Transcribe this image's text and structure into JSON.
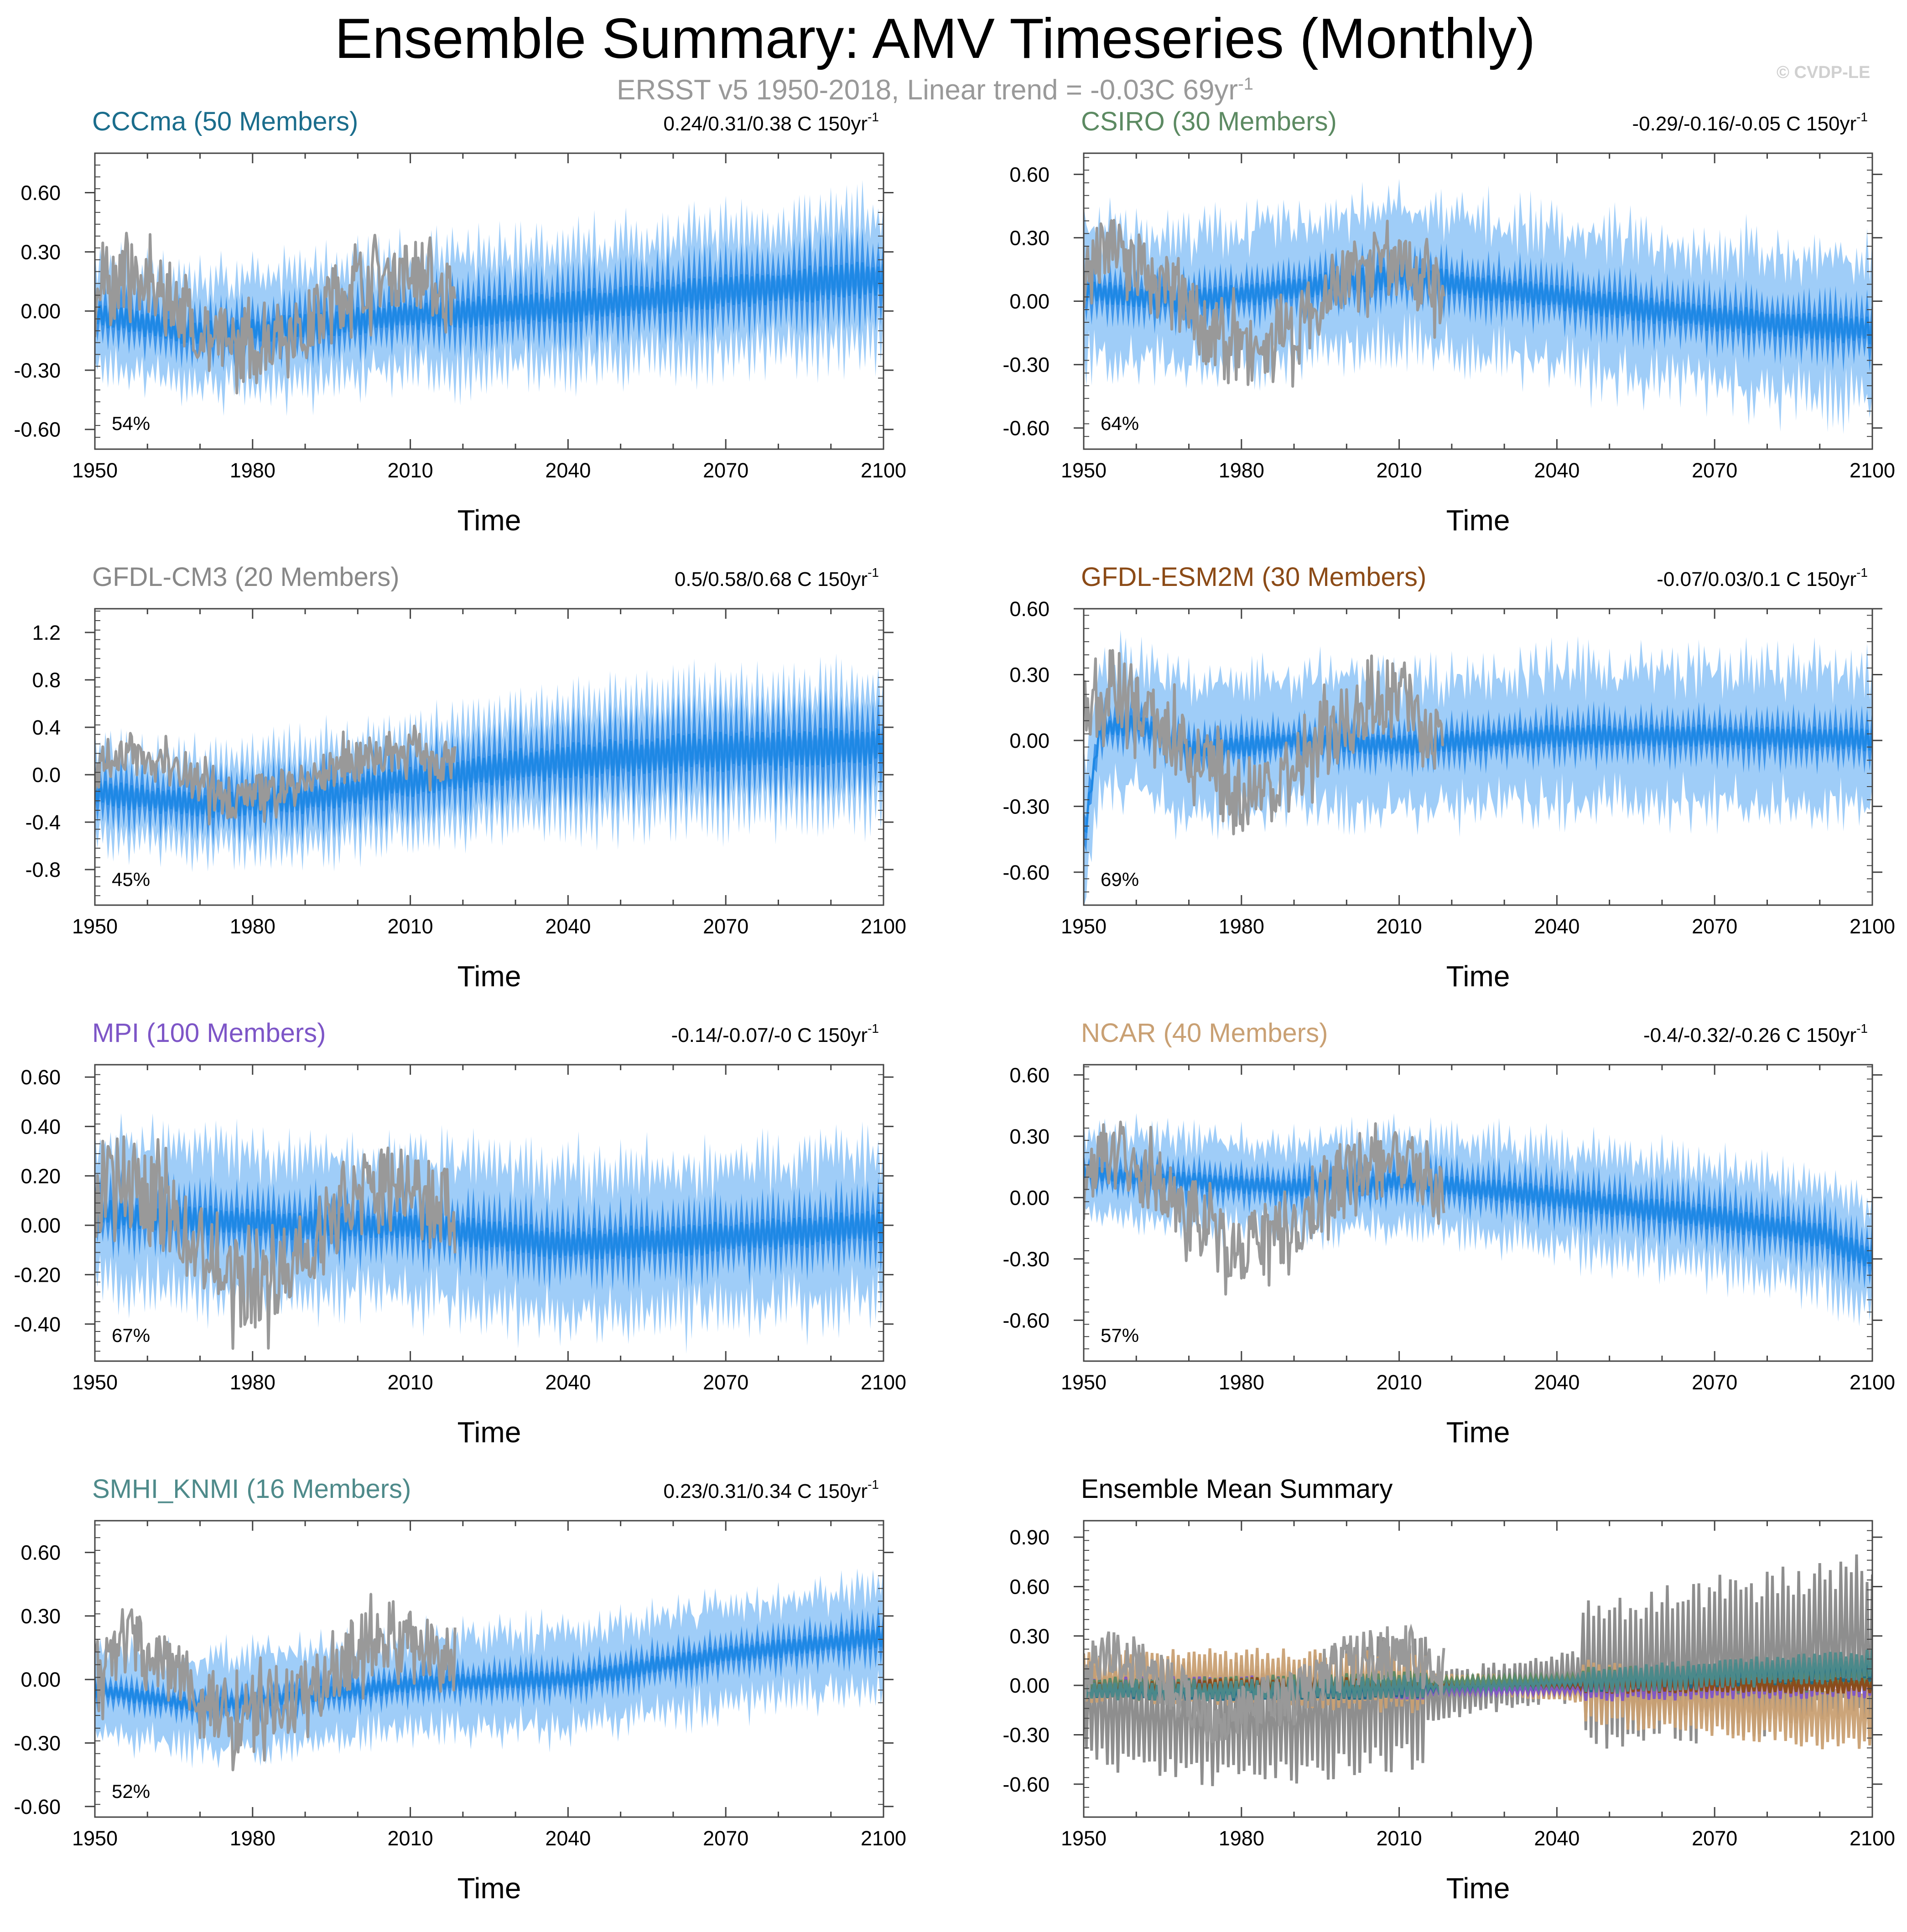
{
  "title": "Ensemble Summary: AMV Timeseries (Monthly)",
  "subtitle": "ERSST v5 1950-2018, Linear trend = -0.03C 69yr",
  "subtitle_sup": "-1",
  "watermark": "© CVDP-LE",
  "colors": {
    "observed": "#999999",
    "ensemble_mean": "#1e88e5",
    "ensemble_inner": "#3e95ea",
    "ensemble_outer": "#9fcdf8",
    "axis": "#444444"
  },
  "chart_data": [
    {
      "type": "line",
      "title": "CCCma (50 Members)",
      "title_color": "#1a6d8c",
      "trend_text": "0.24/0.31/0.38 C 150yr",
      "trend_sup": "-1",
      "percent_label": "54%",
      "xlabel": "Time",
      "xlim": [
        1950,
        2100
      ],
      "xticks": [
        "1950",
        "1980",
        "2010",
        "2040",
        "2070",
        "2100"
      ],
      "ylim": [
        -0.7,
        0.8
      ],
      "yticks": [
        "-0.60",
        "-0.30",
        "0.00",
        "0.30",
        "0.60"
      ],
      "ytick_values": [
        -0.6,
        -0.3,
        0.0,
        0.3,
        0.6
      ],
      "series": [
        {
          "name": "ensemble mean",
          "x": [
            1950,
            1970,
            1990,
            2010,
            2040,
            2070,
            2100
          ],
          "y": [
            -0.02,
            -0.12,
            -0.08,
            -0.02,
            0.02,
            0.1,
            0.17
          ],
          "amplitude_start": 0.18,
          "amplitude_end": 0.28,
          "spread": 0.14
        },
        {
          "name": "observed",
          "x": [
            1950,
            1955,
            1960,
            1965,
            1970,
            1975,
            1980,
            1985,
            1990,
            1995,
            2000,
            2005,
            2010,
            2015,
            2018
          ],
          "y": [
            0.05,
            0.2,
            0.12,
            0.05,
            -0.1,
            -0.2,
            -0.18,
            -0.1,
            -0.08,
            0.05,
            0.15,
            0.18,
            0.22,
            0.12,
            0.08
          ]
        }
      ]
    },
    {
      "type": "line",
      "title": "CSIRO (30 Members)",
      "title_color": "#5c8a62",
      "trend_text": "-0.29/-0.16/-0.05 C 150yr",
      "trend_sup": "-1",
      "percent_label": "64%",
      "xlabel": "Time",
      "xlim": [
        1950,
        2100
      ],
      "xticks": [
        "1950",
        "1980",
        "2010",
        "2040",
        "2070",
        "2100"
      ],
      "ylim": [
        -0.7,
        0.7
      ],
      "yticks": [
        "-0.60",
        "-0.30",
        "0.00",
        "0.30",
        "0.60"
      ],
      "ytick_values": [
        -0.6,
        -0.3,
        0.0,
        0.3,
        0.6
      ],
      "series": [
        {
          "name": "ensemble mean",
          "x": [
            1950,
            1970,
            1990,
            2010,
            2040,
            2070,
            2100
          ],
          "y": [
            0.05,
            0.0,
            0.06,
            0.12,
            0.02,
            -0.08,
            -0.14
          ],
          "amplitude_start": 0.16,
          "amplitude_end": 0.2,
          "spread": 0.2
        },
        {
          "name": "observed",
          "x": [
            1950,
            1955,
            1960,
            1965,
            1970,
            1975,
            1980,
            1985,
            1990,
            1995,
            2000,
            2005,
            2010,
            2015,
            2018
          ],
          "y": [
            0.12,
            0.25,
            0.15,
            0.05,
            -0.05,
            -0.18,
            -0.25,
            -0.2,
            -0.15,
            0.0,
            0.1,
            0.15,
            0.2,
            0.1,
            0.05
          ]
        }
      ]
    },
    {
      "type": "line",
      "title": "GFDL-CM3 (20 Members)",
      "title_color": "#888888",
      "trend_text": "0.5/0.58/0.68 C 150yr",
      "trend_sup": "-1",
      "percent_label": "45%",
      "xlabel": "Time",
      "xlim": [
        1950,
        2100
      ],
      "xticks": [
        "1950",
        "1980",
        "2010",
        "2040",
        "2070",
        "2100"
      ],
      "ylim": [
        -1.1,
        1.4
      ],
      "yticks": [
        "-0.8",
        "-0.4",
        "0.0",
        "0.4",
        "0.8",
        "1.2"
      ],
      "ytick_values": [
        -0.8,
        -0.4,
        0.0,
        0.4,
        0.8,
        1.2
      ],
      "series": [
        {
          "name": "ensemble mean",
          "x": [
            1950,
            1970,
            1990,
            2010,
            2040,
            2070,
            2100
          ],
          "y": [
            -0.15,
            -0.25,
            -0.2,
            -0.05,
            0.12,
            0.2,
            0.25
          ],
          "amplitude_start": 0.32,
          "amplitude_end": 0.55,
          "spread": 0.15
        },
        {
          "name": "observed",
          "x": [
            1950,
            1955,
            1960,
            1965,
            1970,
            1975,
            1980,
            1985,
            1990,
            1995,
            2000,
            2005,
            2010,
            2015,
            2018
          ],
          "y": [
            0.05,
            0.2,
            0.12,
            0.05,
            -0.1,
            -0.2,
            -0.18,
            -0.1,
            -0.08,
            0.05,
            0.15,
            0.18,
            0.22,
            0.12,
            0.08
          ]
        }
      ]
    },
    {
      "type": "line",
      "title": "GFDL-ESM2M (30 Members)",
      "title_color": "#8b4a16",
      "trend_text": "-0.07/0.03/0.1 C 150yr",
      "trend_sup": "-1",
      "percent_label": "69%",
      "xlabel": "Time",
      "xlim": [
        1950,
        2100
      ],
      "xticks": [
        "1950",
        "1980",
        "2010",
        "2040",
        "2070",
        "2100"
      ],
      "ylim": [
        -0.75,
        0.6
      ],
      "yticks": [
        "-0.60",
        "-0.30",
        "0.00",
        "0.30",
        "0.60"
      ],
      "ytick_values": [
        -0.6,
        -0.3,
        0.0,
        0.3,
        0.6
      ],
      "series": [
        {
          "name": "ensemble mean",
          "x": [
            1950,
            1953,
            1960,
            1970,
            1990,
            2010,
            2040,
            2070,
            2100
          ],
          "y": [
            -0.45,
            0.05,
            0.08,
            -0.05,
            0.0,
            -0.02,
            0.02,
            0.02,
            0.0
          ],
          "amplitude_start": 0.14,
          "amplitude_end": 0.16,
          "spread": 0.2
        },
        {
          "name": "observed",
          "x": [
            1950,
            1955,
            1960,
            1965,
            1970,
            1975,
            1980,
            1985,
            1990,
            1995,
            2000,
            2005,
            2010,
            2015,
            2018
          ],
          "y": [
            0.12,
            0.25,
            0.15,
            0.05,
            -0.05,
            -0.18,
            -0.25,
            -0.2,
            -0.15,
            0.0,
            0.1,
            0.15,
            0.2,
            0.1,
            0.05
          ]
        }
      ]
    },
    {
      "type": "line",
      "title": "MPI (100 Members)",
      "title_color": "#7d55c7",
      "trend_text": "-0.14/-0.07/-0 C 150yr",
      "trend_sup": "-1",
      "percent_label": "67%",
      "xlabel": "Time",
      "xlim": [
        1950,
        2100
      ],
      "xticks": [
        "1950",
        "1980",
        "2010",
        "2040",
        "2070",
        "2100"
      ],
      "ylim": [
        -0.55,
        0.65
      ],
      "yticks": [
        "-0.40",
        "-0.20",
        "0.00",
        "0.20",
        "0.40",
        "0.60"
      ],
      "ytick_values": [
        -0.4,
        -0.2,
        0.0,
        0.2,
        0.4,
        0.6
      ],
      "series": [
        {
          "name": "ensemble mean",
          "x": [
            1950,
            1970,
            1990,
            2010,
            2040,
            2070,
            2100
          ],
          "y": [
            0.05,
            0.02,
            0.0,
            0.0,
            -0.08,
            -0.05,
            0.0
          ],
          "amplitude_start": 0.18,
          "amplitude_end": 0.2,
          "spread": 0.16
        },
        {
          "name": "observed",
          "x": [
            1950,
            1955,
            1960,
            1965,
            1970,
            1975,
            1980,
            1985,
            1990,
            1995,
            2000,
            2005,
            2010,
            2015,
            2018
          ],
          "y": [
            0.1,
            0.22,
            0.12,
            0.02,
            -0.1,
            -0.22,
            -0.25,
            -0.18,
            -0.12,
            0.02,
            0.12,
            0.16,
            0.2,
            0.08,
            0.04
          ]
        }
      ]
    },
    {
      "type": "line",
      "title": "NCAR (40 Members)",
      "title_color": "#c9a073",
      "trend_text": "-0.4/-0.32/-0.26 C 150yr",
      "trend_sup": "-1",
      "percent_label": "57%",
      "xlabel": "Time",
      "xlim": [
        1950,
        2100
      ],
      "xticks": [
        "1950",
        "1980",
        "2010",
        "2040",
        "2070",
        "2100"
      ],
      "ylim": [
        -0.8,
        0.65
      ],
      "yticks": [
        "-0.60",
        "-0.30",
        "0.00",
        "0.30",
        "0.60"
      ],
      "ytick_values": [
        -0.6,
        -0.3,
        0.0,
        0.3,
        0.6
      ],
      "series": [
        {
          "name": "ensemble mean",
          "x": [
            1950,
            1970,
            1990,
            2010,
            2040,
            2070,
            2090,
            2100
          ],
          "y": [
            0.12,
            0.08,
            0.05,
            0.08,
            0.0,
            -0.1,
            -0.18,
            -0.3
          ],
          "amplitude_start": 0.12,
          "amplitude_end": 0.2,
          "spread": 0.12
        },
        {
          "name": "observed",
          "x": [
            1950,
            1955,
            1960,
            1965,
            1970,
            1975,
            1980,
            1985,
            1990,
            1995,
            2000,
            2005,
            2010,
            2015,
            2018
          ],
          "y": [
            0.12,
            0.25,
            0.15,
            0.05,
            -0.05,
            -0.18,
            -0.25,
            -0.2,
            -0.15,
            0.0,
            0.1,
            0.15,
            0.2,
            0.1,
            0.05
          ]
        }
      ]
    },
    {
      "type": "line",
      "title": "SMHI_KNMI (16 Members)",
      "title_color": "#4e8a8a",
      "trend_text": "0.23/0.31/0.34 C 150yr",
      "trend_sup": "-1",
      "percent_label": "52%",
      "xlabel": "Time",
      "xlim": [
        1950,
        2100
      ],
      "xticks": [
        "1950",
        "1980",
        "2010",
        "2040",
        "2070",
        "2100"
      ],
      "ylim": [
        -0.65,
        0.75
      ],
      "yticks": [
        "-0.60",
        "-0.30",
        "0.00",
        "0.30",
        "0.60"
      ],
      "ytick_values": [
        -0.6,
        -0.3,
        0.0,
        0.3,
        0.6
      ],
      "series": [
        {
          "name": "ensemble mean",
          "x": [
            1950,
            1970,
            1990,
            2010,
            2040,
            2070,
            2100
          ],
          "y": [
            -0.05,
            -0.12,
            -0.08,
            -0.02,
            0.0,
            0.12,
            0.2
          ],
          "amplitude_start": 0.1,
          "amplitude_end": 0.15,
          "spread": 0.14
        },
        {
          "name": "observed",
          "x": [
            1950,
            1955,
            1960,
            1965,
            1970,
            1975,
            1980,
            1985,
            1990,
            1995,
            2000,
            2005,
            2010,
            2015,
            2018
          ],
          "y": [
            0.05,
            0.2,
            0.12,
            0.05,
            -0.1,
            -0.2,
            -0.18,
            -0.1,
            -0.08,
            0.05,
            0.15,
            0.18,
            0.22,
            0.12,
            0.08
          ]
        }
      ]
    },
    {
      "type": "line",
      "title": "Ensemble Mean Summary",
      "title_color": "#000000",
      "trend_text": "",
      "trend_sup": "",
      "percent_label": "",
      "xlabel": "Time",
      "xlim": [
        1950,
        2100
      ],
      "xticks": [
        "1950",
        "1980",
        "2010",
        "2040",
        "2070",
        "2100"
      ],
      "ylim": [
        -0.8,
        1.0
      ],
      "yticks": [
        "-0.60",
        "-0.30",
        "0.00",
        "0.30",
        "0.60",
        "0.90"
      ],
      "ytick_values": [
        -0.6,
        -0.3,
        0.0,
        0.3,
        0.6,
        0.9
      ],
      "series": [
        {
          "name": "GFDL-CM3",
          "color": "#888888",
          "x": [
            1950,
            1980,
            2030,
            2100
          ],
          "y": [
            -0.15,
            -0.25,
            0.0,
            0.28
          ],
          "amplitude_start": 0.35,
          "amplitude_end": 0.55
        },
        {
          "name": "NCAR",
          "color": "#c9a073",
          "x": [
            1950,
            1980,
            2030,
            2100
          ],
          "y": [
            0.05,
            0.05,
            0.0,
            -0.2
          ],
          "amplitude_start": 0.17,
          "amplitude_end": 0.22
        },
        {
          "name": "MPI",
          "color": "#7d55c7",
          "x": [
            1950,
            1980,
            2030,
            2100
          ],
          "y": [
            0.0,
            0.0,
            -0.03,
            0.02
          ],
          "amplitude_start": 0.05,
          "amplitude_end": 0.1
        },
        {
          "name": "CSIRO",
          "color": "#5c8a62",
          "x": [
            1950,
            1980,
            2030,
            2100
          ],
          "y": [
            0.0,
            0.0,
            0.03,
            0.05
          ],
          "amplitude_start": 0.05,
          "amplitude_end": 0.1
        },
        {
          "name": "GFDL-ESM2M",
          "color": "#8b4a16",
          "x": [
            1950,
            1980,
            2030,
            2100
          ],
          "y": [
            -0.03,
            0.0,
            0.0,
            0.0
          ],
          "amplitude_start": 0.05,
          "amplitude_end": 0.05
        },
        {
          "name": "CCCma",
          "color": "#1a6d8c",
          "x": [
            1950,
            1980,
            2030,
            2100
          ],
          "y": [
            -0.03,
            -0.05,
            0.0,
            0.1
          ],
          "amplitude_start": 0.05,
          "amplitude_end": 0.08
        },
        {
          "name": "SMHI_KNMI",
          "color": "#4e8a8a",
          "x": [
            1950,
            1980,
            2030,
            2100
          ],
          "y": [
            -0.03,
            -0.03,
            0.0,
            0.12
          ],
          "amplitude_start": 0.06,
          "amplitude_end": 0.1
        },
        {
          "name": "observed",
          "color": "#999999",
          "x": [
            1950,
            1955,
            1960,
            1965,
            1970,
            1975,
            1980,
            1985,
            1990,
            1995,
            2000,
            2005,
            2010,
            2015,
            2018
          ],
          "y": [
            0.05,
            0.2,
            0.12,
            0.05,
            -0.1,
            -0.2,
            -0.18,
            -0.1,
            -0.08,
            0.05,
            0.15,
            0.18,
            0.22,
            0.12,
            0.08
          ]
        }
      ]
    }
  ]
}
